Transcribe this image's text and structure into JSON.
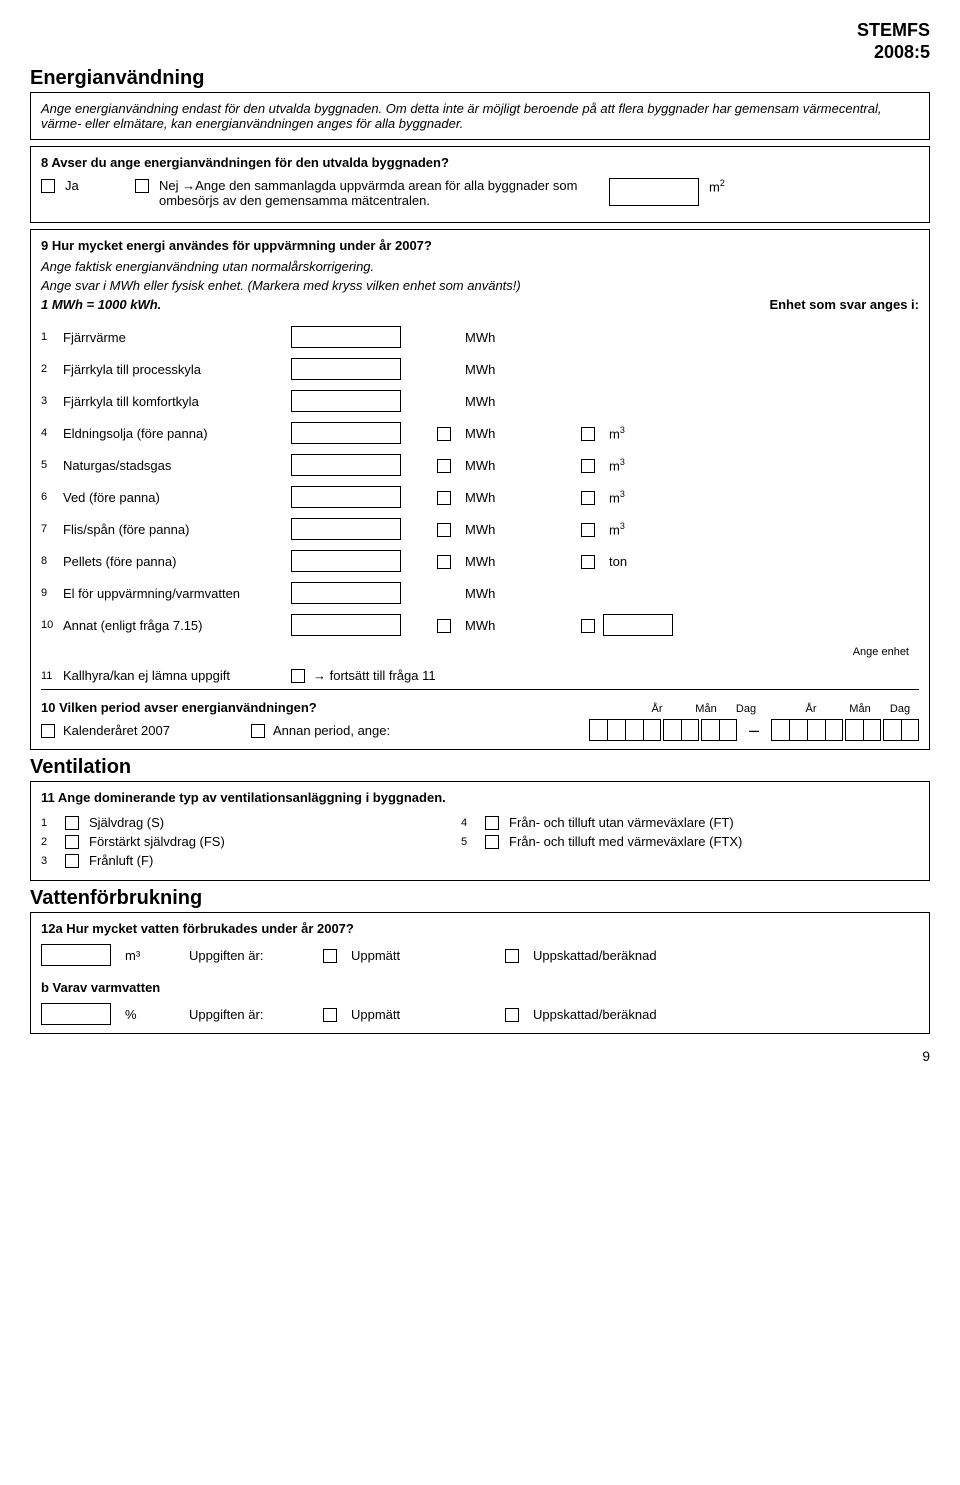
{
  "doc": {
    "code1": "STEMFS",
    "code2": "2008:5"
  },
  "s1": {
    "title": "Energianvändning",
    "intro": "Ange energianvändning endast för den utvalda byggnaden. Om detta inte är möjligt beroende på att flera byggnader har gemensam värmecentral, värme- eller elmätare, kan energianvändningen anges för alla byggnader.",
    "q8": "8 Avser du ange energianvändningen för den utvalda byggnaden?",
    "ja": "Ja",
    "nej": "Nej →Ange den sammanlagda uppvärmda arean för alla byggnader som ombesörjs av den gemensamma mätcentralen.",
    "m2": "m",
    "q9": "9 Hur mycket energi användes för uppvärmning under år 2007?",
    "q9a": "Ange faktisk energianvändning utan normalårskorrigering.",
    "q9b": "Ange svar i MWh eller fysisk enhet. (Markera med kryss vilken enhet som använts!)",
    "q9c": "1 MWh = 1000 kWh.",
    "q9d": "Enhet som svar anges i:",
    "rows": [
      {
        "n": "1",
        "label": "Fjärrvärme",
        "u1": "MWh",
        "u2": "",
        "c1": false,
        "c2": false
      },
      {
        "n": "2",
        "label": "Fjärrkyla till processkyla",
        "u1": "MWh",
        "u2": "",
        "c1": false,
        "c2": false
      },
      {
        "n": "3",
        "label": "Fjärrkyla till komfortkyla",
        "u1": "MWh",
        "u2": "",
        "c1": false,
        "c2": false
      },
      {
        "n": "4",
        "label": "Eldningsolja (före panna)",
        "u1": "MWh",
        "u2": "m³",
        "c1": true,
        "c2": true
      },
      {
        "n": "5",
        "label": "Naturgas/stadsgas",
        "u1": "MWh",
        "u2": "m³",
        "c1": true,
        "c2": true
      },
      {
        "n": "6",
        "label": "Ved (före panna)",
        "u1": "MWh",
        "u2": "m³",
        "c1": true,
        "c2": true
      },
      {
        "n": "7",
        "label": "Flis/spån (före panna)",
        "u1": "MWh",
        "u2": "m³",
        "c1": true,
        "c2": true
      },
      {
        "n": "8",
        "label": "Pellets (före panna)",
        "u1": "MWh",
        "u2": "ton",
        "c1": true,
        "c2": true
      },
      {
        "n": "9",
        "label": "El för uppvärmning/varmvatten",
        "u1": "MWh",
        "u2": "",
        "c1": false,
        "c2": false
      },
      {
        "n": "10",
        "label": "Annat (enligt fråga 7.15)",
        "u1": "MWh",
        "u2": "",
        "c1": true,
        "c2": true,
        "extra": true
      }
    ],
    "angeEnhet": "Ange enhet",
    "r11n": "11",
    "r11": "Kallhyra/kan ej lämna uppgift",
    "r11b": "→ fortsätt till fråga 11",
    "q10": "10 Vilken period avser energianvändningen?",
    "kal": "Kalenderåret 2007",
    "annan": "Annan period, ange:",
    "dh": {
      "ar": "År",
      "man": "Mån",
      "dag": "Dag"
    }
  },
  "s2": {
    "title": "Ventilation",
    "q11": "11 Ange dominerande typ av ventilationsanläggning i byggnaden.",
    "opts": [
      {
        "n": "1",
        "t": "Självdrag (S)"
      },
      {
        "n": "2",
        "t": "Förstärkt självdrag (FS)"
      },
      {
        "n": "3",
        "t": "Frånluft (F)"
      },
      {
        "n": "4",
        "t": "Från- och tilluft utan värmeväxlare (FT)"
      },
      {
        "n": "5",
        "t": "Från- och tilluft med värmeväxlare (FTX)"
      }
    ]
  },
  "s3": {
    "title": "Vattenförbrukning",
    "q12a": "12a Hur mycket vatten förbrukades under år 2007?",
    "m3": "m³",
    "upp": "Uppgiften är:",
    "uppm": "Uppmätt",
    "uppsk": "Uppskattad/beräknad",
    "q12b": "b Varav varmvatten",
    "pct": "%"
  },
  "page": "9"
}
